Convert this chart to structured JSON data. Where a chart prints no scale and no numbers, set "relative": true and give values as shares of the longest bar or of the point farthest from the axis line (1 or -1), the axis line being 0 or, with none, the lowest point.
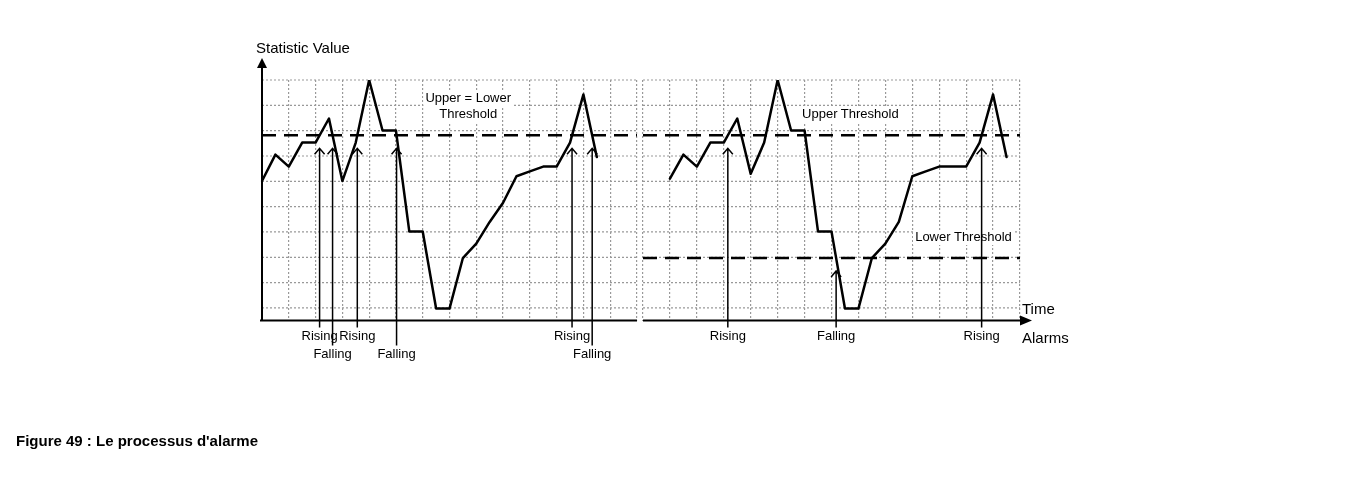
{
  "chart_data": [
    {
      "type": "line",
      "ylabel": "Statistic Value",
      "relative": true,
      "grid": true,
      "legend": false,
      "marker": "none",
      "line_style": "solid",
      "categories": [
        null,
        null,
        null,
        null,
        null,
        null,
        null,
        null,
        null,
        null,
        null,
        null,
        null,
        null,
        null,
        null,
        null,
        null,
        null,
        null,
        null,
        null,
        null,
        null,
        null,
        null,
        null,
        null,
        null
      ],
      "series": [
        {
          "color": "#000000",
          "values": [
            0.58,
            0.69,
            0.64,
            0.74,
            0.74,
            0.84,
            0.58,
            0.74,
            1,
            0.79,
            0.79,
            0.37,
            0.37,
            0.05,
            0.05,
            0.26,
            0.32,
            0.41,
            0.49,
            0.6,
            0.62,
            0.64,
            0.64,
            0.74,
            0.94,
            0.68,
            null,
            null,
            null
          ]
        }
      ],
      "ref_lines": [
        {
          "axis": "y",
          "value": 0.77,
          "label": "Upper = Lower Threshold",
          "line_style": "dashed"
        }
      ],
      "annotations": [
        "Rising",
        "Falling",
        "Rising",
        "Falling",
        "Rising",
        "Falling"
      ]
    },
    {
      "type": "line",
      "xlabel": "Time",
      "relative": true,
      "grid": true,
      "legend": false,
      "marker": "none",
      "line_style": "solid",
      "categories": [
        null,
        null,
        null,
        null,
        null,
        null,
        null,
        null,
        null,
        null,
        null,
        null,
        null,
        null,
        null,
        null,
        null,
        null,
        null,
        null,
        null,
        null,
        null,
        null,
        null,
        null,
        null,
        null,
        null
      ],
      "series": [
        {
          "color": "#000000",
          "values": [
            null,
            null,
            0.59,
            0.69,
            0.64,
            0.74,
            0.74,
            0.84,
            0.61,
            0.74,
            1,
            0.79,
            0.79,
            0.37,
            0.37,
            0.05,
            0.05,
            0.26,
            0.32,
            0.41,
            0.6,
            0.62,
            0.64,
            0.64,
            0.64,
            0.74,
            0.94,
            0.68,
            null
          ]
        }
      ],
      "ref_lines": [
        {
          "axis": "y",
          "value": 0.77,
          "label": "Upper Threshold",
          "line_style": "dashed"
        },
        {
          "axis": "y",
          "value": 0.26,
          "label": "Lower Threshold",
          "line_style": "dashed"
        }
      ],
      "annotations": [
        "Rising",
        "Falling",
        "Rising",
        "Alarms",
        "Figure 49 : Le processus d'alarme"
      ]
    }
  ]
}
